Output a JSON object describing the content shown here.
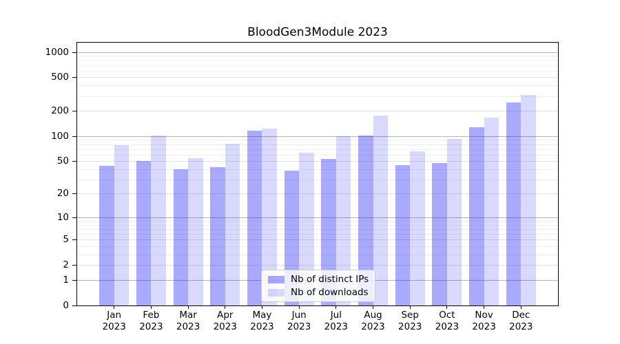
{
  "chart_data": {
    "type": "bar",
    "title": "BloodGen3Module 2023",
    "x_tick_months": [
      "Jan",
      "Feb",
      "Mar",
      "Apr",
      "May",
      "Jun",
      "Jul",
      "Aug",
      "Sep",
      "Oct",
      "Nov",
      "Dec"
    ],
    "x_tick_year": "2023",
    "y_scale": "log(value+1), symlog-style axis",
    "y_ticks": [
      0,
      1,
      2,
      5,
      10,
      20,
      50,
      100,
      200,
      500,
      1000
    ],
    "y_minor_ticks": [
      3,
      4,
      6,
      7,
      8,
      9,
      30,
      40,
      60,
      70,
      80,
      90,
      300,
      400,
      600,
      700,
      800,
      900
    ],
    "ylim": [
      0,
      1304
    ],
    "grid": "both",
    "legend_position": "lower center",
    "series": [
      {
        "name": "Nb of distinct IPs",
        "color": "#aaaaf6",
        "fill": "rgba(20,20,246,0.36)",
        "values": [
          44,
          51,
          40,
          43,
          117,
          39,
          54,
          103,
          45,
          48,
          128,
          252
        ]
      },
      {
        "name": "Nb of downloads",
        "color": "#d9d9fb",
        "fill": "rgba(20,20,246,0.16)",
        "values": [
          78,
          102,
          55,
          81,
          123,
          64,
          100,
          176,
          66,
          93,
          166,
          310
        ]
      }
    ],
    "gridline_colors": {
      "major_decade": "#b3b3b3",
      "labeled_tick": "#e3e3e3",
      "minor": "#f0f0f0"
    }
  }
}
